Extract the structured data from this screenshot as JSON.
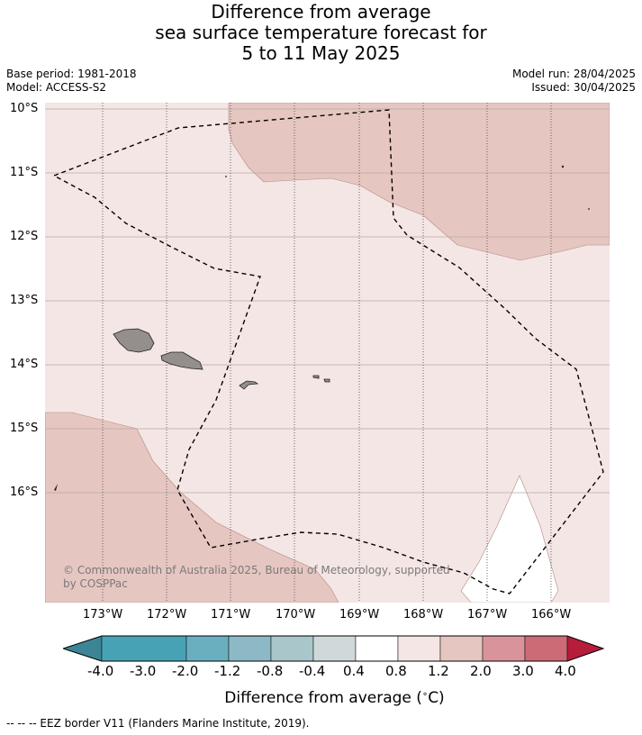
{
  "title": {
    "line1": "Difference from average",
    "line2": "sea surface temperature forecast for",
    "line3": "5 to 11 May 2025"
  },
  "meta": {
    "base_period": "Base period: 1981-2018",
    "model": "Model: ACCESS-S2",
    "model_run": "Model run: 28/04/2025",
    "issued": "Issued: 30/04/2025"
  },
  "map": {
    "lat_labels": [
      "10°S",
      "11°S",
      "12°S",
      "13°S",
      "14°S",
      "15°S",
      "16°S"
    ],
    "lon_labels": [
      "173°W",
      "172°W",
      "171°W",
      "170°W",
      "169°W",
      "168°W",
      "167°W",
      "166°W"
    ],
    "copyright": "© Commonwealth of Australia 2025, Bureau of Meteorology, supported by COSPPac",
    "colors": {
      "background_band": "#f4e6e4",
      "warm_band": "#e6c6c1",
      "neutral_band": "#ffffff",
      "land": "#948f8d",
      "grid_h": "#b9a9a6"
    }
  },
  "colorbar": {
    "title": "Difference from average ($^\\circ$C)",
    "title_text": "Difference from average (",
    "title_unit": "C)",
    "tick_labels": [
      "-4.0",
      "-3.0",
      "-2.0",
      "-1.2",
      "-0.8",
      "-0.4",
      "0.4",
      "0.8",
      "1.2",
      "2.0",
      "3.0",
      "4.0"
    ],
    "colors": [
      "#3c8597",
      "#48a2b5",
      "#6aafc0",
      "#8db9c6",
      "#a9c6cb",
      "#cfd9da",
      "#ffffff",
      "#f4e6e4",
      "#e6c6c1",
      "#d8949a",
      "#cc6a76",
      "#c14557",
      "#b51d3a"
    ]
  },
  "footer": "--  --  -- EEZ border V11 (Flanders Marine Institute, 2019)."
}
